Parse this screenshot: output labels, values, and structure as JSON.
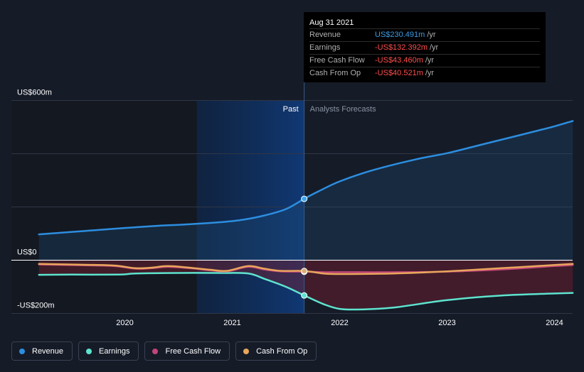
{
  "tooltip": {
    "date": "Aug 31 2021",
    "rows": [
      {
        "label": "Revenue",
        "value": "US$230.491m",
        "unit": "/yr",
        "color": "#3b9be6"
      },
      {
        "label": "Earnings",
        "value": "-US$132.392m",
        "unit": "/yr",
        "color": "#ff4d4d"
      },
      {
        "label": "Free Cash Flow",
        "value": "-US$43.460m",
        "unit": "/yr",
        "color": "#ff4d4d"
      },
      {
        "label": "Cash From Op",
        "value": "-US$40.521m",
        "unit": "/yr",
        "color": "#ff4d4d"
      }
    ]
  },
  "legend": [
    {
      "label": "Revenue",
      "color": "#2d8ee0"
    },
    {
      "label": "Earnings",
      "color": "#5ee3cf"
    },
    {
      "label": "Free Cash Flow",
      "color": "#c2457a"
    },
    {
      "label": "Cash From Op",
      "color": "#e8a55c"
    }
  ],
  "chart_data": {
    "type": "line",
    "yticks": [
      "US$600m",
      "US$0",
      "-US$200m"
    ],
    "xticks": [
      "2020",
      "2021",
      "2022",
      "2023",
      "2024"
    ],
    "ylim": [
      -200,
      600
    ],
    "past_label": "Past",
    "forecast_label": "Analysts Forecasts",
    "divider_x": 2021.67,
    "past_highlight_start": 2020.67,
    "series": [
      {
        "name": "Revenue",
        "color": "#2d8ee0",
        "points": [
          [
            2019.2,
            97
          ],
          [
            2019.5,
            106
          ],
          [
            2019.8,
            115
          ],
          [
            2020.0,
            121
          ],
          [
            2020.3,
            129
          ],
          [
            2020.6,
            135
          ],
          [
            2020.9,
            143
          ],
          [
            2021.1,
            152
          ],
          [
            2021.3,
            168
          ],
          [
            2021.5,
            192
          ],
          [
            2021.67,
            230.5
          ],
          [
            2021.8,
            258
          ],
          [
            2022.0,
            296
          ],
          [
            2022.3,
            337
          ],
          [
            2022.7,
            378
          ],
          [
            2023.0,
            402
          ],
          [
            2023.3,
            432
          ],
          [
            2023.7,
            472
          ],
          [
            2024.0,
            503
          ],
          [
            2024.17,
            523
          ]
        ]
      },
      {
        "name": "Earnings",
        "color": "#5ee3cf",
        "points": [
          [
            2019.2,
            -55
          ],
          [
            2019.5,
            -54
          ],
          [
            2019.95,
            -54
          ],
          [
            2020.1,
            -50
          ],
          [
            2020.5,
            -48
          ],
          [
            2020.9,
            -48
          ],
          [
            2021.15,
            -50
          ],
          [
            2021.3,
            -70
          ],
          [
            2021.5,
            -100
          ],
          [
            2021.67,
            -132.4
          ],
          [
            2021.85,
            -165
          ],
          [
            2022.0,
            -183
          ],
          [
            2022.2,
            -185
          ],
          [
            2022.5,
            -178
          ],
          [
            2023.0,
            -150
          ],
          [
            2023.5,
            -133
          ],
          [
            2024.0,
            -125
          ],
          [
            2024.17,
            -123
          ]
        ]
      },
      {
        "name": "Free Cash Flow",
        "color": "#c2457a",
        "points": [
          [
            2019.2,
            -16
          ],
          [
            2019.6,
            -19
          ],
          [
            2019.9,
            -22
          ],
          [
            2020.1,
            -32
          ],
          [
            2020.25,
            -30
          ],
          [
            2020.4,
            -25
          ],
          [
            2020.6,
            -30
          ],
          [
            2020.8,
            -38
          ],
          [
            2020.95,
            -42
          ],
          [
            2021.15,
            -25
          ],
          [
            2021.3,
            -35
          ],
          [
            2021.45,
            -42
          ],
          [
            2021.67,
            -43.5
          ],
          [
            2021.85,
            -45
          ],
          [
            2022.0,
            -45
          ],
          [
            2022.5,
            -45
          ],
          [
            2023.0,
            -43
          ],
          [
            2023.5,
            -35
          ],
          [
            2024.0,
            -22
          ],
          [
            2024.17,
            -18
          ]
        ]
      },
      {
        "name": "Cash From Op",
        "color": "#e8a55c",
        "points": [
          [
            2019.2,
            -14
          ],
          [
            2019.6,
            -17
          ],
          [
            2019.9,
            -20
          ],
          [
            2020.1,
            -30
          ],
          [
            2020.25,
            -28
          ],
          [
            2020.4,
            -22
          ],
          [
            2020.6,
            -28
          ],
          [
            2020.8,
            -36
          ],
          [
            2020.95,
            -40
          ],
          [
            2021.15,
            -22
          ],
          [
            2021.3,
            -32
          ],
          [
            2021.45,
            -40
          ],
          [
            2021.67,
            -40.5
          ],
          [
            2021.85,
            -50
          ],
          [
            2022.0,
            -52
          ],
          [
            2022.5,
            -50
          ],
          [
            2023.0,
            -42
          ],
          [
            2023.5,
            -30
          ],
          [
            2024.0,
            -18
          ],
          [
            2024.17,
            -14
          ]
        ]
      }
    ]
  }
}
